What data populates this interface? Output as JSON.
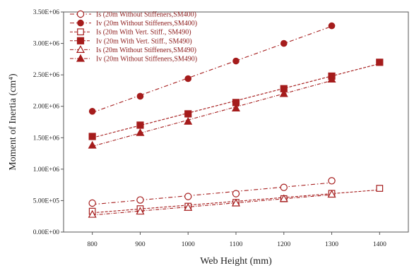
{
  "chart_data": {
    "type": "scatter",
    "title": "",
    "xlabel": "Web Height (mm)",
    "ylabel": "Moment of Inertia (cm⁴)",
    "xlim": [
      740,
      1460
    ],
    "ylim": [
      0,
      3500000
    ],
    "x_ticks": [
      "800",
      "900",
      "1000",
      "1100",
      "1200",
      "1300",
      "1400"
    ],
    "y_ticks": [
      "0.00E+00",
      "5.00E+05",
      "1.00E+06",
      "1.50E+06",
      "2.00E+06",
      "2.50E+06",
      "3.00E+06",
      "3.50E+06"
    ],
    "legend_position": "top-left",
    "color": "#a51c1c",
    "series": [
      {
        "name": "Is (20m Without  Stiffeners,SM400)",
        "marker": "circle-open",
        "x": [
          800,
          900,
          1000,
          1100,
          1200,
          1300
        ],
        "y": [
          460000,
          510000,
          565000,
          610000,
          710000,
          815000
        ]
      },
      {
        "name": "Iv (20m Without  Stiffeners,SM400)",
        "marker": "circle-filled",
        "x": [
          800,
          900,
          1000,
          1100,
          1200,
          1300
        ],
        "y": [
          1920000,
          2160000,
          2440000,
          2720000,
          3000000,
          3280000
        ]
      },
      {
        "name": "Is (20m With Vert. Stiff., SM490)",
        "marker": "square-open",
        "x": [
          800,
          900,
          1000,
          1100,
          1200,
          1300,
          1400
        ],
        "y": [
          330000,
          370000,
          410000,
          470000,
          530000,
          615000,
          695000
        ]
      },
      {
        "name": "Iv (20m With Vert. Stiff., SM490)",
        "marker": "square-filled",
        "x": [
          800,
          900,
          1000,
          1100,
          1200,
          1300,
          1400
        ],
        "y": [
          1520000,
          1700000,
          1880000,
          2060000,
          2280000,
          2480000,
          2700000
        ]
      },
      {
        "name": "Is (20m Without  Stiffeners,SM490)",
        "marker": "triangle-open",
        "x": [
          800,
          900,
          1000,
          1100,
          1200,
          1300
        ],
        "y": [
          280000,
          330000,
          390000,
          460000,
          530000,
          600000
        ]
      },
      {
        "name": "Iv (20m Without  Stiffeners,SM490)",
        "marker": "triangle-filled",
        "x": [
          800,
          900,
          1000,
          1100,
          1200,
          1300
        ],
        "y": [
          1380000,
          1580000,
          1760000,
          1970000,
          2200000,
          2430000
        ]
      }
    ]
  }
}
